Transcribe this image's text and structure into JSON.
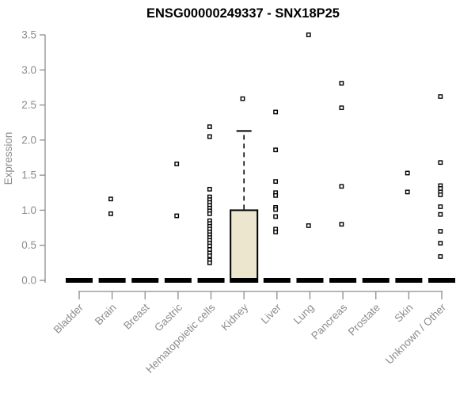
{
  "chart_data": {
    "type": "boxplot",
    "title": "ENSG00000249337 - SNX18P25",
    "ylabel": "Expression",
    "xlabel": "",
    "ylim": [
      0,
      3.5
    ],
    "yticks": [
      0.0,
      0.5,
      1.0,
      1.5,
      2.0,
      2.5,
      3.0,
      3.5
    ],
    "grid": false,
    "legend": "none",
    "colors": {
      "box_fill": "#ece6cf",
      "box_stroke": "#000000",
      "marker_stroke": "#000000",
      "marker_fill": "#ffffff",
      "axis": "#8c8c8c",
      "title": "#000000"
    },
    "categories": [
      "Bladder",
      "Brain",
      "Breast",
      "Gastric",
      "Hematopoietic cells",
      "Kidney",
      "Liver",
      "Lung",
      "Pancreas",
      "Prostate",
      "Skin",
      "Unknown / Other"
    ],
    "series": [
      {
        "category": "Bladder",
        "median": 0,
        "q1": 0,
        "q3": 0,
        "whisker_high": 0,
        "points": []
      },
      {
        "category": "Brain",
        "median": 0,
        "q1": 0,
        "q3": 0,
        "whisker_high": 0,
        "points": [
          1.16,
          0.95
        ]
      },
      {
        "category": "Breast",
        "median": 0,
        "q1": 0,
        "q3": 0,
        "whisker_high": 0,
        "points": []
      },
      {
        "category": "Gastric",
        "median": 0,
        "q1": 0,
        "q3": 0,
        "whisker_high": 0,
        "points": [
          1.66,
          0.92
        ]
      },
      {
        "category": "Hematopoietic cells",
        "median": 0,
        "q1": 0,
        "q3": 0,
        "whisker_high": 0,
        "points": [
          2.19,
          2.05,
          1.3,
          1.19,
          1.15,
          1.11,
          1.07,
          1.03,
          0.99,
          0.95,
          0.85,
          0.81,
          0.77,
          0.73,
          0.69,
          0.65,
          0.61,
          0.57,
          0.53,
          0.49,
          0.44,
          0.39,
          0.35,
          0.29,
          0.25
        ]
      },
      {
        "category": "Kidney",
        "median": 0,
        "q1": 0,
        "q3": 1.0,
        "whisker_high": 2.13,
        "points": [
          2.59
        ]
      },
      {
        "category": "Liver",
        "median": 0,
        "q1": 0,
        "q3": 0,
        "whisker_high": 0,
        "points": [
          2.4,
          1.86,
          1.41,
          1.25,
          1.21,
          1.04,
          1.01,
          0.91,
          0.73,
          0.69
        ]
      },
      {
        "category": "Lung",
        "median": 0,
        "q1": 0,
        "q3": 0,
        "whisker_high": 0,
        "points": [
          3.5,
          0.78
        ]
      },
      {
        "category": "Pancreas",
        "median": 0,
        "q1": 0,
        "q3": 0,
        "whisker_high": 0,
        "points": [
          2.81,
          2.46,
          1.34,
          0.8
        ]
      },
      {
        "category": "Prostate",
        "median": 0,
        "q1": 0,
        "q3": 0,
        "whisker_high": 0,
        "points": []
      },
      {
        "category": "Skin",
        "median": 0,
        "q1": 0,
        "q3": 0,
        "whisker_high": 0,
        "points": [
          1.53,
          1.26
        ]
      },
      {
        "category": "Unknown / Other",
        "median": 0,
        "q1": 0,
        "q3": 0,
        "whisker_high": 0,
        "points": [
          2.62,
          1.68,
          1.35,
          1.31,
          1.26,
          1.22,
          1.05,
          0.94,
          0.7,
          0.53,
          0.34
        ]
      }
    ]
  }
}
